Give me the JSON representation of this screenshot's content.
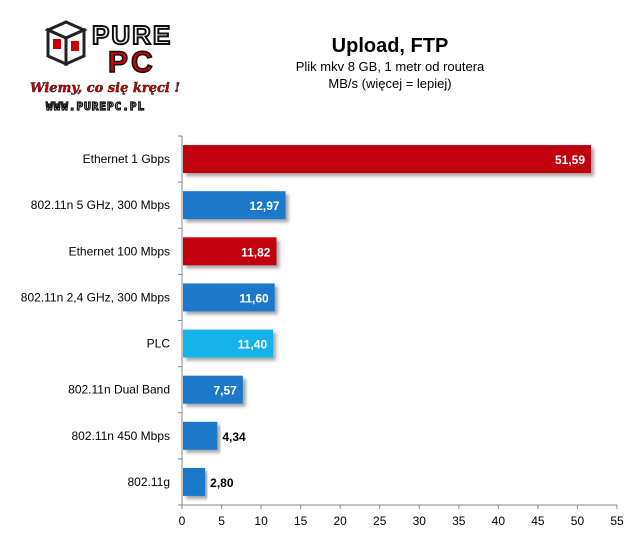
{
  "logo": {
    "brand_top": "PURE",
    "brand_pc": "PC",
    "slogan": "Wiemy, co się kręci !",
    "url": "WWW.PUREPC.PL"
  },
  "header": {
    "title": "Upload, FTP",
    "subtitle": "Plik mkv 8 GB, 1 metr od routera",
    "unit_note": "MB/s (więcej = lepiej)"
  },
  "colors": {
    "red": "#c0000a",
    "blue": "#1f78c8",
    "light_blue": "#18b2ea"
  },
  "chart_data": {
    "type": "bar",
    "orientation": "horizontal",
    "title": "Upload, FTP",
    "subtitle": "Plik mkv 8 GB, 1 metr od routera",
    "xlabel": "MB/s (więcej = lepiej)",
    "categories": [
      "Ethernet 1 Gbps",
      "802.11n 5 GHz, 300 Mbps",
      "Ethernet 100 Mbps",
      "802.11n 2,4 GHz, 300 Mbps",
      "PLC",
      "802.11n Dual Band",
      "802.11n 450 Mbps",
      "802.11g"
    ],
    "values": [
      51.59,
      12.97,
      11.82,
      11.6,
      11.4,
      7.57,
      4.34,
      2.8
    ],
    "value_labels": [
      "51,59",
      "12,97",
      "11,82",
      "11,60",
      "11,40",
      "7,57",
      "4,34",
      "2,80"
    ],
    "bar_colors": [
      "red",
      "blue",
      "red",
      "blue",
      "light_blue",
      "blue",
      "blue",
      "blue"
    ],
    "xlim": [
      0,
      55
    ],
    "xticks": [
      0,
      5,
      10,
      15,
      20,
      25,
      30,
      35,
      40,
      45,
      50,
      55
    ],
    "grid": false,
    "legend": "none"
  }
}
